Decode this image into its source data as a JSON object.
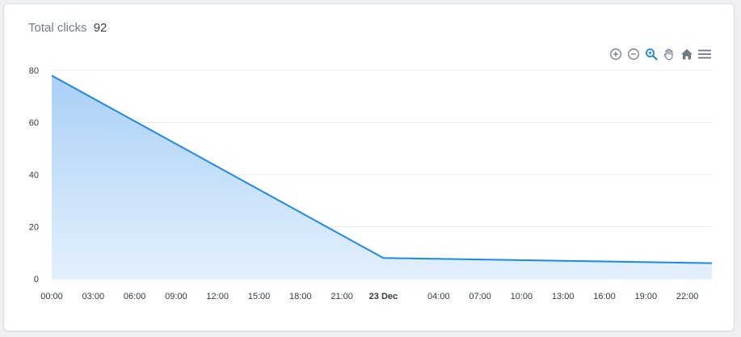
{
  "header": {
    "label": "Total clicks",
    "value": "92"
  },
  "toolbar": {
    "icons": [
      "zoom-in-icon",
      "zoom-out-icon",
      "selection-zoom-icon",
      "pan-hand-icon",
      "home-icon",
      "menu-icon"
    ],
    "active_color": "#1e88e5",
    "icon_color": "#6e7a86"
  },
  "colors": {
    "line": "#1e88e5",
    "area_top": "#a9d0f8",
    "area_bottom": "#e3f0fc",
    "grid": "#e6e8eb"
  },
  "chart_data": {
    "type": "area",
    "x": [
      "2021-12-22 00:00",
      "2021-12-23 00:00",
      "2021-12-24 00:00"
    ],
    "series": [
      {
        "values": [
          78,
          8,
          6
        ]
      }
    ],
    "ylim": [
      0,
      80
    ],
    "yticks": [
      0,
      20,
      40,
      60,
      80
    ],
    "xticks": [
      "00:00",
      "03:00",
      "06:00",
      "09:00",
      "12:00",
      "15:00",
      "18:00",
      "21:00",
      "23 Dec",
      "04:00",
      "07:00",
      "10:00",
      "13:00",
      "16:00",
      "19:00",
      "22:00"
    ],
    "grid": true,
    "legend": "none"
  }
}
